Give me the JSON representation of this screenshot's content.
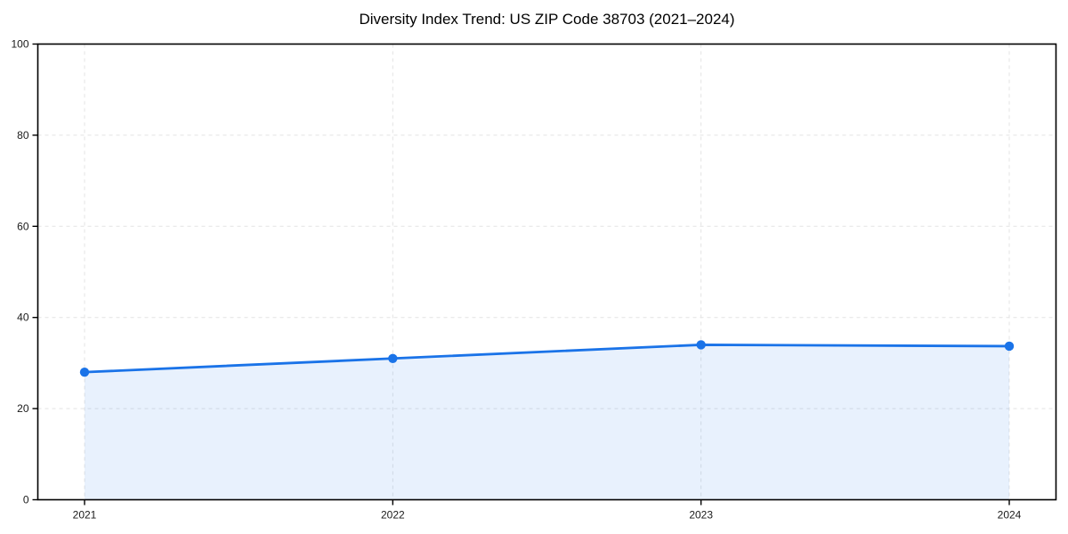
{
  "chart_data": {
    "type": "area",
    "title": "Diversity Index Trend: US ZIP Code 38703 (2021–2024)",
    "x": [
      "2021",
      "2022",
      "2023",
      "2024"
    ],
    "series": [
      {
        "name": "Diversity Index",
        "values": [
          28,
          31,
          34,
          33.7
        ]
      }
    ],
    "xlabel": "",
    "ylabel": "",
    "ylim": [
      0,
      100
    ],
    "yticks": [
      0,
      20,
      40,
      60,
      80,
      100
    ],
    "grid": "dashed-both-axes",
    "legend": "none",
    "marker": "circle",
    "colors": {
      "line": "#1a73e8",
      "marker": "#1a73e8",
      "fill": "rgba(26,115,232,0.10)",
      "axis": "#000000",
      "grid": "#e3e3e3",
      "tick_label": "#1a1a1a",
      "background": "#ffffff"
    }
  }
}
